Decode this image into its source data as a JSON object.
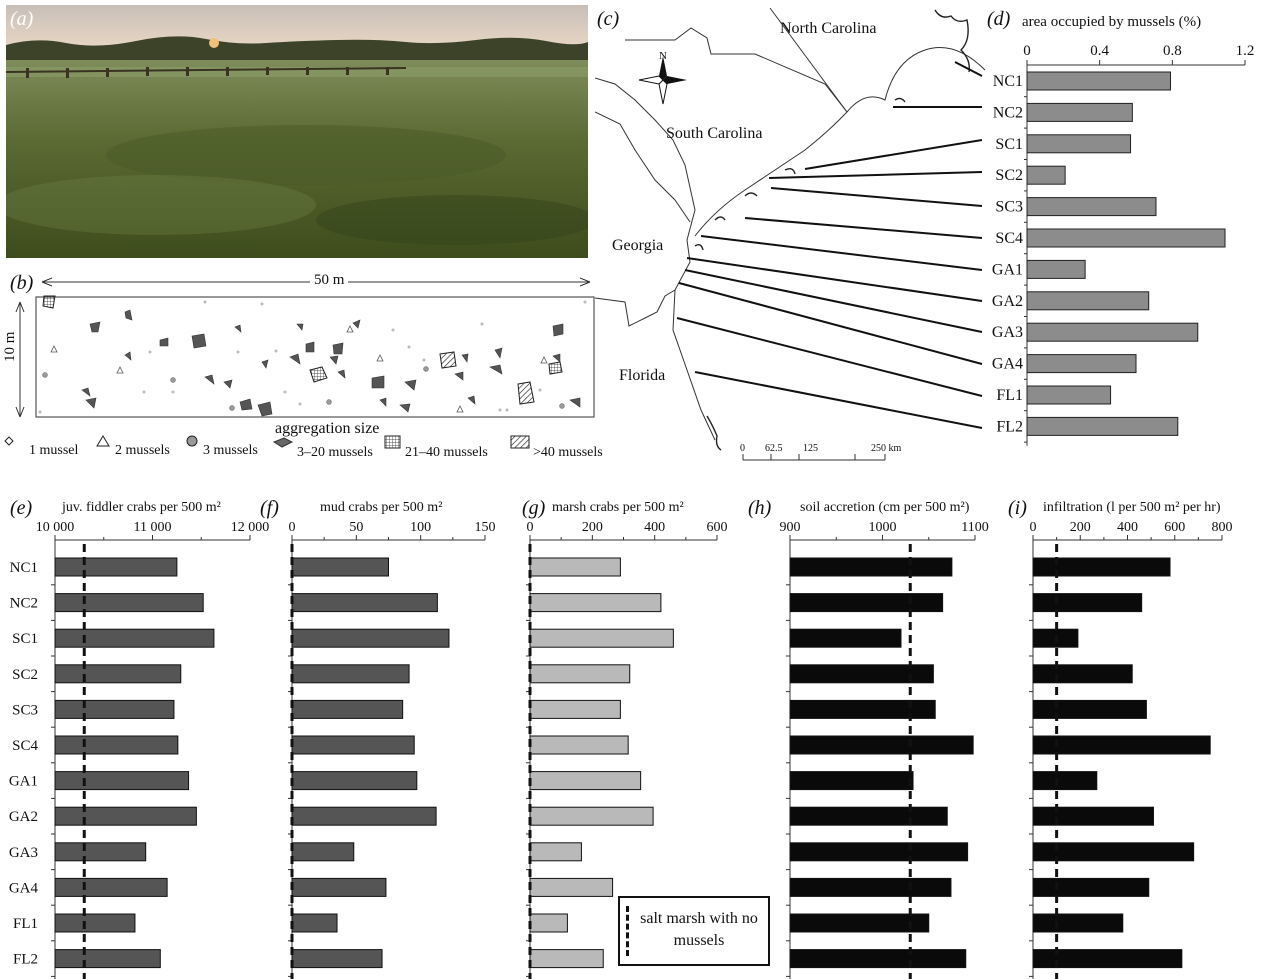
{
  "panel_labels": {
    "a": "(a)",
    "b": "(b)",
    "c": "(c)",
    "d": "(d)",
    "e": "(e)",
    "f": "(f)",
    "g": "(g)",
    "h": "(h)",
    "i": "(i)"
  },
  "panel_b": {
    "width_label": "50 m",
    "height_label": "10 m",
    "legend_title": "aggregation size",
    "legend": [
      "1 mussel",
      "2 mussels",
      "3 mussels",
      "3–20 mussels",
      "21–40 mussels",
      ">40 mussels"
    ]
  },
  "map": {
    "states": [
      "North Carolina",
      "South Carolina",
      "Georgia",
      "Florida"
    ],
    "north": "N",
    "scale_ticks": [
      "0",
      "62.5",
      "125",
      "250 km"
    ]
  },
  "sites": [
    "NC1",
    "NC2",
    "SC1",
    "SC2",
    "SC3",
    "SC4",
    "GA1",
    "GA2",
    "GA3",
    "GA4",
    "FL1",
    "FL2"
  ],
  "legend_box": "salt marsh with no mussels",
  "colors": {
    "dark_gray": "#555555",
    "mid_gray": "#8c8c8c",
    "light_gray": "#b9b9b9",
    "black": "#0a0a0a"
  },
  "chart_data": [
    {
      "type": "bar",
      "id": "d",
      "title": "area occupied by mussels (%)",
      "xlim": [
        0,
        1.2
      ],
      "ticks": [
        "0",
        "0.4",
        "0.8",
        "1.2"
      ],
      "values": [
        0.79,
        0.58,
        0.57,
        0.21,
        0.71,
        1.09,
        0.32,
        0.67,
        0.94,
        0.6,
        0.46,
        0.83
      ]
    },
    {
      "type": "bar",
      "id": "e",
      "title": "juv. fiddler crabs per 500 m²",
      "xlim": [
        10000,
        12000
      ],
      "ticks": [
        "10 000",
        "11 000",
        "12 000"
      ],
      "baseline": 10300,
      "values": [
        11250,
        11520,
        11630,
        11290,
        11220,
        11260,
        11370,
        11450,
        10930,
        11150,
        10820,
        11080
      ]
    },
    {
      "type": "bar",
      "id": "f",
      "title": "mud crabs per 500 m²",
      "xlim": [
        0,
        150
      ],
      "ticks": [
        "0",
        "50",
        "100",
        "150"
      ],
      "baseline": 0,
      "values": [
        75,
        113,
        122,
        91,
        86,
        95,
        97,
        112,
        48,
        73,
        35,
        70
      ]
    },
    {
      "type": "bar",
      "id": "g",
      "title": "marsh crabs per 500 m²",
      "xlim": [
        0,
        600
      ],
      "ticks": [
        "0",
        "200",
        "400",
        "600"
      ],
      "baseline": 0,
      "values": [
        290,
        420,
        460,
        320,
        290,
        315,
        355,
        395,
        165,
        265,
        120,
        235
      ]
    },
    {
      "type": "bar",
      "id": "h",
      "title": "soil accretion (cm per 500 m²)",
      "xlim": [
        900,
        1100
      ],
      "ticks": [
        "900",
        "1000",
        "1100"
      ],
      "baseline": 1030,
      "values": [
        1075,
        1065,
        1020,
        1055,
        1057,
        1098,
        1033,
        1070,
        1092,
        1074,
        1050,
        1090
      ]
    },
    {
      "type": "bar",
      "id": "i",
      "title": "infiltration (l per 500 m² per hr)",
      "xlim": [
        0,
        800
      ],
      "ticks": [
        "0",
        "200",
        "400",
        "600",
        "800"
      ],
      "baseline": 100,
      "values": [
        580,
        460,
        190,
        420,
        480,
        750,
        270,
        510,
        680,
        490,
        380,
        630
      ]
    }
  ]
}
